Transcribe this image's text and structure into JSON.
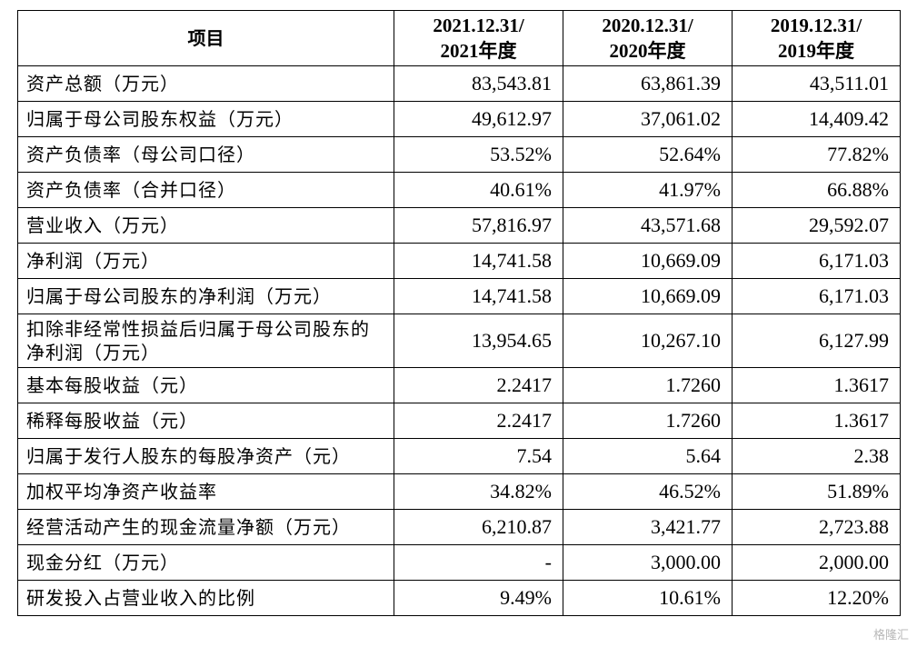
{
  "table": {
    "headers": [
      {
        "line1": "项目",
        "line2": ""
      },
      {
        "line1": "2021.12.31/",
        "line2": "2021年度"
      },
      {
        "line1": "2020.12.31/",
        "line2": "2020年度"
      },
      {
        "line1": "2019.12.31/",
        "line2": "2019年度"
      }
    ],
    "rows": [
      {
        "label": "资产总额（万元）",
        "values": [
          "83,543.81",
          "63,861.39",
          "43,511.01"
        ]
      },
      {
        "label": "归属于母公司股东权益（万元）",
        "values": [
          "49,612.97",
          "37,061.02",
          "14,409.42"
        ]
      },
      {
        "label": "资产负债率（母公司口径）",
        "values": [
          "53.52%",
          "52.64%",
          "77.82%"
        ]
      },
      {
        "label": "资产负债率（合并口径）",
        "values": [
          "40.61%",
          "41.97%",
          "66.88%"
        ]
      },
      {
        "label": "营业收入（万元）",
        "values": [
          "57,816.97",
          "43,571.68",
          "29,592.07"
        ]
      },
      {
        "label": "净利润（万元）",
        "values": [
          "14,741.58",
          "10,669.09",
          "6,171.03"
        ]
      },
      {
        "label": "归属于母公司股东的净利润（万元）",
        "values": [
          "14,741.58",
          "10,669.09",
          "6,171.03"
        ]
      },
      {
        "label": "扣除非经常性损益后归属于母公司股东的净利润（万元）",
        "values": [
          "13,954.65",
          "10,267.10",
          "6,127.99"
        ]
      },
      {
        "label": "基本每股收益（元）",
        "values": [
          "2.2417",
          "1.7260",
          "1.3617"
        ]
      },
      {
        "label": "稀释每股收益（元）",
        "values": [
          "2.2417",
          "1.7260",
          "1.3617"
        ]
      },
      {
        "label": "归属于发行人股东的每股净资产（元）",
        "values": [
          "7.54",
          "5.64",
          "2.38"
        ]
      },
      {
        "label": "加权平均净资产收益率",
        "values": [
          "34.82%",
          "46.52%",
          "51.89%"
        ]
      },
      {
        "label": "经营活动产生的现金流量净额（万元）",
        "values": [
          "6,210.87",
          "3,421.77",
          "2,723.88"
        ]
      },
      {
        "label": "现金分红（万元）",
        "values": [
          "-",
          "3,000.00",
          "2,000.00"
        ]
      },
      {
        "label": "研发投入占营业收入的比例",
        "values": [
          "9.49%",
          "10.61%",
          "12.20%"
        ]
      }
    ]
  },
  "watermark": "格隆汇"
}
